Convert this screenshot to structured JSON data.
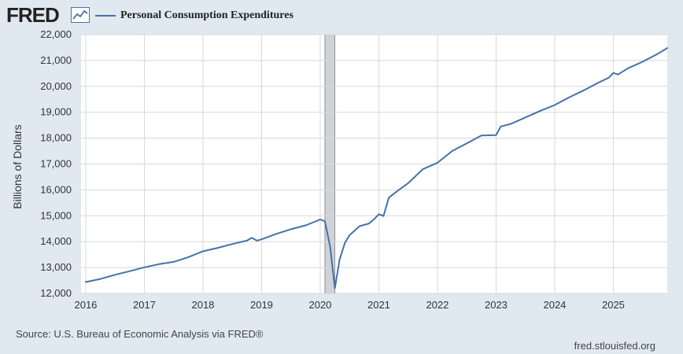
{
  "header": {
    "logo_text": "FRED",
    "logo_icon": "line-chart-icon"
  },
  "footer": {
    "source": "Source: U.S. Bureau of Economic Analysis via FRED®",
    "site": "fred.stlouisfed.org"
  },
  "colors": {
    "background": "#e1e9f0",
    "plot_background": "#ffffff",
    "series": "#4572a7",
    "recession": "#cfd2d6",
    "grid": "#d8d8d8"
  },
  "chart_data": {
    "type": "line",
    "title": "",
    "xlabel": "",
    "ylabel": "Billions of Dollars",
    "ylim": [
      12000,
      22000
    ],
    "xlim": [
      2015.92,
      2025.92
    ],
    "y_ticks": [
      12000,
      13000,
      14000,
      15000,
      16000,
      17000,
      18000,
      19000,
      20000,
      21000,
      22000
    ],
    "y_tick_labels": [
      "12,000",
      "13,000",
      "14,000",
      "15,000",
      "16,000",
      "17,000",
      "18,000",
      "19,000",
      "20,000",
      "21,000",
      "22,000"
    ],
    "x_ticks": [
      2016,
      2017,
      2018,
      2019,
      2020,
      2021,
      2022,
      2023,
      2024,
      2025
    ],
    "x_tick_labels": [
      "2016",
      "2017",
      "2018",
      "2019",
      "2020",
      "2021",
      "2022",
      "2023",
      "2024",
      "2025"
    ],
    "grid": true,
    "legend_position": "top-left",
    "recessions": [
      {
        "start": 2020.08,
        "end": 2020.25
      }
    ],
    "series": [
      {
        "name": "Personal Consumption Expenditures",
        "points": [
          [
            2016.0,
            12440
          ],
          [
            2016.25,
            12560
          ],
          [
            2016.5,
            12720
          ],
          [
            2016.75,
            12860
          ],
          [
            2017.0,
            13010
          ],
          [
            2017.25,
            13130
          ],
          [
            2017.5,
            13220
          ],
          [
            2017.75,
            13400
          ],
          [
            2018.0,
            13630
          ],
          [
            2018.25,
            13760
          ],
          [
            2018.5,
            13910
          ],
          [
            2018.75,
            14040
          ],
          [
            2018.83,
            14150
          ],
          [
            2018.92,
            14040
          ],
          [
            2019.0,
            14090
          ],
          [
            2019.25,
            14300
          ],
          [
            2019.5,
            14480
          ],
          [
            2019.75,
            14630
          ],
          [
            2019.92,
            14780
          ],
          [
            2020.0,
            14860
          ],
          [
            2020.08,
            14790
          ],
          [
            2020.17,
            13800
          ],
          [
            2020.25,
            12200
          ],
          [
            2020.33,
            13300
          ],
          [
            2020.42,
            13950
          ],
          [
            2020.5,
            14250
          ],
          [
            2020.67,
            14600
          ],
          [
            2020.83,
            14700
          ],
          [
            2020.92,
            14870
          ],
          [
            2021.0,
            15060
          ],
          [
            2021.08,
            14990
          ],
          [
            2021.17,
            15700
          ],
          [
            2021.33,
            15980
          ],
          [
            2021.5,
            16260
          ],
          [
            2021.75,
            16800
          ],
          [
            2022.0,
            17050
          ],
          [
            2022.25,
            17500
          ],
          [
            2022.5,
            17800
          ],
          [
            2022.75,
            18100
          ],
          [
            2023.0,
            18120
          ],
          [
            2023.08,
            18450
          ],
          [
            2023.25,
            18550
          ],
          [
            2023.5,
            18800
          ],
          [
            2023.75,
            19050
          ],
          [
            2024.0,
            19280
          ],
          [
            2024.25,
            19580
          ],
          [
            2024.5,
            19850
          ],
          [
            2024.75,
            20150
          ],
          [
            2024.92,
            20330
          ],
          [
            2025.0,
            20520
          ],
          [
            2025.08,
            20460
          ],
          [
            2025.25,
            20700
          ],
          [
            2025.5,
            20950
          ],
          [
            2025.75,
            21250
          ],
          [
            2025.92,
            21480
          ]
        ]
      }
    ]
  }
}
